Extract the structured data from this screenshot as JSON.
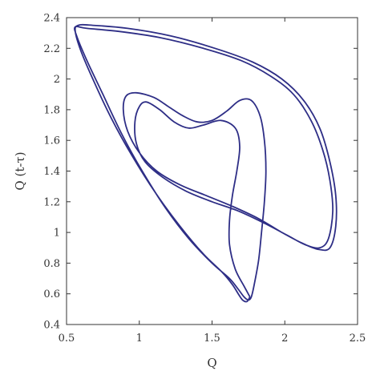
{
  "chart_data": {
    "type": "line",
    "title": "",
    "xlabel": "Q",
    "ylabel": "Q (t-τ)",
    "xlim": [
      0.5,
      2.5
    ],
    "ylim": [
      0.4,
      2.4
    ],
    "x_ticks": [
      "0.5",
      "1",
      "1.5",
      "2",
      "2.5"
    ],
    "y_ticks": [
      "0.4",
      "0.6",
      "0.8",
      "1",
      "1.2",
      "1.4",
      "1.6",
      "1.8",
      "2",
      "2.2",
      "2.4"
    ],
    "grid": false,
    "legend": "none",
    "line_color": "#2e2e86",
    "series": [
      {
        "name": "",
        "points": [
          [
            1.76,
            0.58
          ],
          [
            1.72,
            0.65
          ],
          [
            1.66,
            0.76
          ],
          [
            1.62,
            0.92
          ],
          [
            1.62,
            1.08
          ],
          [
            1.64,
            1.24
          ],
          [
            1.67,
            1.4
          ],
          [
            1.69,
            1.56
          ],
          [
            1.66,
            1.68
          ],
          [
            1.56,
            1.73
          ],
          [
            1.44,
            1.7
          ],
          [
            1.34,
            1.68
          ],
          [
            1.24,
            1.72
          ],
          [
            1.14,
            1.8
          ],
          [
            1.05,
            1.85
          ],
          [
            1.0,
            1.82
          ],
          [
            0.97,
            1.72
          ],
          [
            0.98,
            1.58
          ],
          [
            1.04,
            1.46
          ],
          [
            1.16,
            1.36
          ],
          [
            1.32,
            1.27
          ],
          [
            1.5,
            1.2
          ],
          [
            1.68,
            1.14
          ],
          [
            1.86,
            1.06
          ],
          [
            2.02,
            0.98
          ],
          [
            2.14,
            0.92
          ],
          [
            2.24,
            0.9
          ],
          [
            2.3,
            0.96
          ],
          [
            2.33,
            1.14
          ],
          [
            2.31,
            1.34
          ],
          [
            2.26,
            1.54
          ],
          [
            2.18,
            1.73
          ],
          [
            2.06,
            1.9
          ],
          [
            1.9,
            2.02
          ],
          [
            1.7,
            2.12
          ],
          [
            1.44,
            2.2
          ],
          [
            1.14,
            2.27
          ],
          [
            0.86,
            2.31
          ],
          [
            0.64,
            2.33
          ],
          [
            0.56,
            2.34
          ],
          [
            0.57,
            2.28
          ],
          [
            0.64,
            2.12
          ],
          [
            0.75,
            1.9
          ],
          [
            0.88,
            1.64
          ],
          [
            1.02,
            1.4
          ],
          [
            1.18,
            1.16
          ],
          [
            1.34,
            0.96
          ],
          [
            1.5,
            0.8
          ],
          [
            1.62,
            0.7
          ],
          [
            1.68,
            0.63
          ],
          [
            1.72,
            0.58
          ],
          [
            1.75,
            0.56
          ],
          [
            1.77,
            0.58
          ],
          [
            1.79,
            0.66
          ],
          [
            1.82,
            0.82
          ],
          [
            1.84,
            1.0
          ],
          [
            1.86,
            1.2
          ],
          [
            1.87,
            1.4
          ],
          [
            1.86,
            1.6
          ],
          [
            1.83,
            1.76
          ],
          [
            1.77,
            1.86
          ],
          [
            1.69,
            1.86
          ],
          [
            1.6,
            1.79
          ],
          [
            1.5,
            1.73
          ],
          [
            1.4,
            1.72
          ],
          [
            1.3,
            1.76
          ],
          [
            1.2,
            1.82
          ],
          [
            1.1,
            1.88
          ],
          [
            0.98,
            1.91
          ],
          [
            0.91,
            1.89
          ],
          [
            0.89,
            1.8
          ],
          [
            0.92,
            1.66
          ],
          [
            1.0,
            1.52
          ],
          [
            1.12,
            1.4
          ],
          [
            1.28,
            1.31
          ],
          [
            1.46,
            1.24
          ],
          [
            1.64,
            1.17
          ],
          [
            1.82,
            1.09
          ],
          [
            1.98,
            1.0
          ],
          [
            2.12,
            0.93
          ],
          [
            2.23,
            0.89
          ],
          [
            2.31,
            0.9
          ],
          [
            2.35,
            1.04
          ],
          [
            2.35,
            1.24
          ],
          [
            2.31,
            1.46
          ],
          [
            2.24,
            1.68
          ],
          [
            2.13,
            1.86
          ],
          [
            1.98,
            2.0
          ],
          [
            1.78,
            2.11
          ],
          [
            1.52,
            2.2
          ],
          [
            1.22,
            2.28
          ],
          [
            0.92,
            2.33
          ],
          [
            0.68,
            2.35
          ],
          [
            0.58,
            2.35
          ],
          [
            0.56,
            2.31
          ],
          [
            0.6,
            2.18
          ],
          [
            0.69,
            1.98
          ],
          [
            0.81,
            1.74
          ],
          [
            0.95,
            1.5
          ],
          [
            1.11,
            1.26
          ],
          [
            1.28,
            1.04
          ],
          [
            1.44,
            0.86
          ],
          [
            1.57,
            0.74
          ],
          [
            1.64,
            0.66
          ],
          [
            1.68,
            0.6
          ],
          [
            1.71,
            0.56
          ],
          [
            1.74,
            0.55
          ],
          [
            1.76,
            0.58
          ]
        ]
      }
    ]
  }
}
